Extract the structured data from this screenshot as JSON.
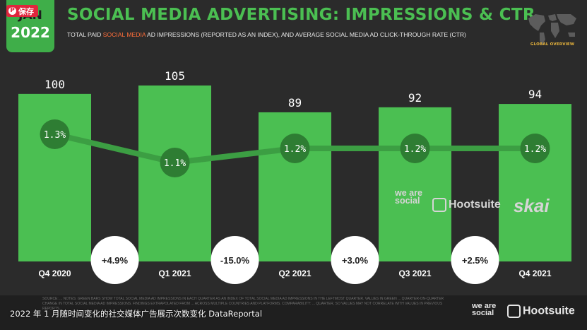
{
  "header": {
    "save_label": "保存",
    "date_month": "JAN",
    "date_year": "2022",
    "title": "SOCIAL MEDIA ADVERTISING: IMPRESSIONS & CTR",
    "subtitle_pre": "TOTAL PAID ",
    "subtitle_highlight": "SOCIAL MEDIA",
    "subtitle_post": " AD IMPRESSIONS (REPORTED AS AN INDEX), AND AVERAGE SOCIAL MEDIA AD CLICK-THROUGH RATE (CTR)",
    "globe_label": "GLOBAL OVERVIEW"
  },
  "chart_data": {
    "type": "bar",
    "categories": [
      "Q4 2020",
      "Q1 2021",
      "Q2 2021",
      "Q3 2021",
      "Q4 2021"
    ],
    "series": [
      {
        "values": [
          100,
          105,
          89,
          92,
          94
        ],
        "labels": [
          "100",
          "105",
          "89",
          "92",
          "94"
        ]
      },
      {
        "values": [
          1.3,
          1.1,
          1.2,
          1.2,
          1.2
        ],
        "labels": [
          "1.3%",
          "1.1%",
          "1.2%",
          "1.2%",
          "1.2%"
        ]
      }
    ],
    "changes": [
      "+4.9%",
      "-15.0%",
      "+3.0%",
      "+2.5%"
    ],
    "ylim": [
      0,
      105
    ]
  },
  "brands": {
    "we_are_social": "we are social",
    "hootsuite": "Hootsuite",
    "skai": "skai"
  },
  "footer": {
    "notes": "SOURCE: ... NOTES: GREEN BARS SHOW TOTAL SOCIAL MEDIA AD IMPRESSIONS IN EACH QUARTER AS AN INDEX OF TOTAL SOCIAL MEDIA AD IMPRESSIONS IN THE LEFTMOST QUARTER. VALUES IN GREEN ... QUARTER-ON-QUARTER CHANGE IN TOTAL SOCIAL MEDIA AD IMPRESSIONS. FINDINGS EXTRAPOLATED FROM ... ACROSS MULTIPLE COUNTRIES AND PLATFORMS. COMPARABILITY: ... QUARTER, SO VALUES MAY NOT CORRELATE WITH VALUES IN PREVIOUS REPORTS.",
    "caption": "2022 年 1 月随时间变化的社交媒体广告展示次数变化 DataReportal"
  },
  "colors": {
    "background": "#2b2b2b",
    "bar": "#4bbf52",
    "line": "#3c9e43",
    "line_dot": "#2e7d33",
    "title": "#4bbf52",
    "highlight": "#ff6e3a"
  }
}
